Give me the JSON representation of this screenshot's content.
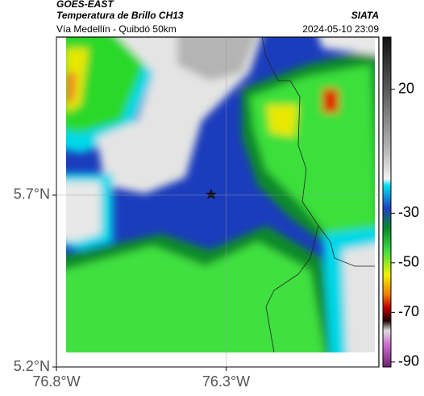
{
  "header": {
    "source": "GOES-EAST",
    "product": "Temperatura de Brillo CH13",
    "org": "SIATA",
    "route": "Vía Medellín - Quibdó 50km",
    "datetime": "2024-05-10 23:09"
  },
  "map": {
    "lat_range": [
      5.2,
      6.16
    ],
    "lon_range": [
      -76.8,
      -75.85
    ],
    "lat_ticks": [
      {
        "value": 5.7,
        "label": "5.7°N"
      },
      {
        "value": 5.2,
        "label": "5.2°N"
      }
    ],
    "lon_ticks": [
      {
        "value": -76.8,
        "label": "76.8°W"
      },
      {
        "value": -76.3,
        "label": "76.3°W"
      }
    ]
  },
  "colorbar": {
    "lim": [
      -92,
      41
    ],
    "ticks": [
      20,
      -30,
      -50,
      -70,
      -90
    ]
  }
}
